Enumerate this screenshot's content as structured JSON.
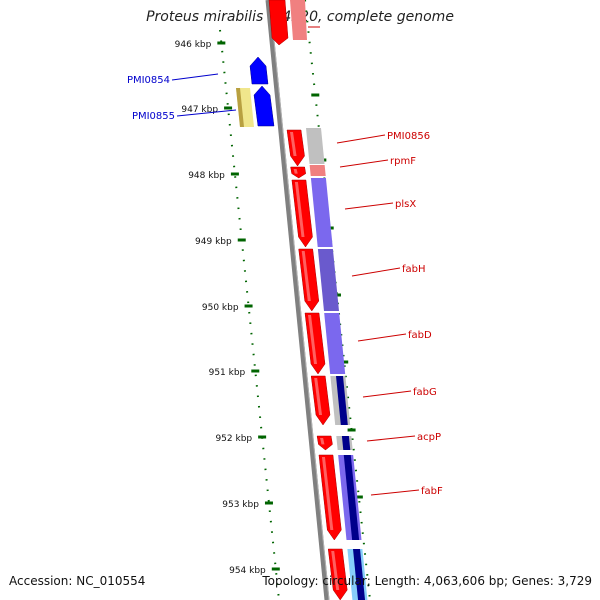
{
  "title": "Proteus mirabilis HI4320, complete genome",
  "accession": "Accession: NC_010554",
  "topology": "Topology: circular; Length: 4,063,606 bp; Genes: 3,729",
  "ticks": [
    {
      "label": "946 kbp"
    },
    {
      "label": "947 kbp"
    },
    {
      "label": "948 kbp"
    },
    {
      "label": "949 kbp"
    },
    {
      "label": "950 kbp"
    },
    {
      "label": "951 kbp"
    },
    {
      "label": "952 kbp"
    },
    {
      "label": "953 kbp"
    },
    {
      "label": "954 kbp"
    }
  ],
  "genes_left": [
    {
      "label": "PMI0854",
      "color": "#0000cc"
    },
    {
      "label": "PMI0855",
      "color": "#0000cc"
    }
  ],
  "genes_right": [
    {
      "label": "PMI0856",
      "color": "#cc0000"
    },
    {
      "label": "rpmF",
      "color": "#cc0000"
    },
    {
      "label": "plsX",
      "color": "#cc0000"
    },
    {
      "label": "fabH",
      "color": "#cc0000"
    },
    {
      "label": "fabD",
      "color": "#cc0000"
    },
    {
      "label": "fabG",
      "color": "#cc0000"
    },
    {
      "label": "acpP",
      "color": "#cc0000"
    },
    {
      "label": "fabF",
      "color": "#cc0000"
    }
  ],
  "colors": {
    "backbone": "#808080",
    "forward_cds": "#ff0000",
    "reverse_cds": "#0000ff",
    "cog_purple": "#7b68ee",
    "tick": "#006400"
  }
}
